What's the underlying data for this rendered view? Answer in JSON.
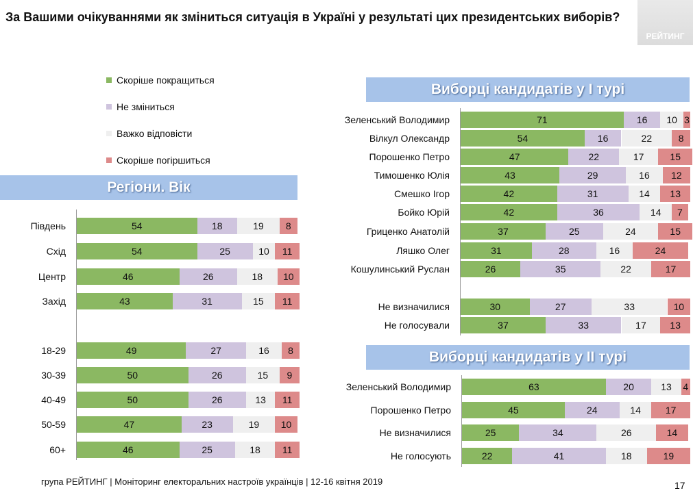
{
  "title": "За Вашими очікуваннями як зміниться ситуація в Україні у результаті цих президентських виборів?",
  "logo_text": "РЕЙТИНГ",
  "colors": {
    "better": "#8bb862",
    "same": "#cfc4de",
    "hard": "#efefef",
    "worse": "#dd8a8a",
    "header_bg": "#a7c3e9"
  },
  "legend": [
    {
      "label": "Скоріше покращиться",
      "key": "better"
    },
    {
      "label": "Не зміниться",
      "key": "same"
    },
    {
      "label": "Важко відповісти",
      "key": "hard"
    },
    {
      "label": "Скоріше погіршиться",
      "key": "worse"
    }
  ],
  "chart_data": [
    {
      "type": "bar",
      "stacked": true,
      "orientation": "horizontal",
      "title": "Регіони. Вік",
      "categories": [
        "Південь",
        "Схід",
        "Центр",
        "Захід",
        "18-29",
        "30-39",
        "40-49",
        "50-59",
        "60+"
      ],
      "series": [
        {
          "name": "Скоріше покращиться",
          "values": [
            54,
            54,
            46,
            43,
            49,
            50,
            50,
            47,
            46
          ]
        },
        {
          "name": "Не зміниться",
          "values": [
            18,
            25,
            26,
            31,
            27,
            26,
            26,
            23,
            25
          ]
        },
        {
          "name": "Важко відповісти",
          "values": [
            19,
            10,
            18,
            15,
            16,
            15,
            13,
            19,
            18
          ]
        },
        {
          "name": "Скоріше погіршиться",
          "values": [
            8,
            11,
            10,
            11,
            8,
            9,
            11,
            10,
            11
          ]
        }
      ]
    },
    {
      "type": "bar",
      "stacked": true,
      "orientation": "horizontal",
      "title": "Виборці кандидатів у І турі",
      "categories": [
        "Зеленський Володимир",
        "Вілкул Олександр",
        "Порошенко Петро",
        "Тимошенко Юлія",
        "Смешко Ігор",
        "Бойко Юрій",
        "Гриценко Анатолій",
        "Ляшко Олег",
        "Кошулинський Руслан",
        "Не визначилися",
        "Не голосували"
      ],
      "series": [
        {
          "name": "Скоріше покращиться",
          "values": [
            71,
            54,
            47,
            43,
            42,
            42,
            37,
            31,
            26,
            30,
            37
          ]
        },
        {
          "name": "Не зміниться",
          "values": [
            16,
            16,
            22,
            29,
            31,
            36,
            25,
            28,
            35,
            27,
            33
          ]
        },
        {
          "name": "Важко відповісти",
          "values": [
            10,
            22,
            17,
            16,
            14,
            14,
            24,
            16,
            22,
            33,
            17
          ]
        },
        {
          "name": "Скоріше погіршиться",
          "values": [
            3,
            8,
            15,
            12,
            13,
            7,
            15,
            24,
            17,
            10,
            13
          ]
        }
      ]
    },
    {
      "type": "bar",
      "stacked": true,
      "orientation": "horizontal",
      "title": "Виборці кандидатів у ІІ турі",
      "categories": [
        "Зеленський Володимир",
        "Порошенко Петро",
        "Не визначилися",
        "Не голосують"
      ],
      "series": [
        {
          "name": "Скоріше покращиться",
          "values": [
            63,
            45,
            25,
            22
          ]
        },
        {
          "name": "Не зміниться",
          "values": [
            20,
            24,
            34,
            41
          ]
        },
        {
          "name": "Важко відповісти",
          "values": [
            13,
            14,
            26,
            18
          ]
        },
        {
          "name": "Скоріше погіршиться",
          "values": [
            4,
            17,
            14,
            19
          ]
        }
      ]
    }
  ],
  "footer": "група РЕЙТИНГ | Моніторинг електоральних настроїв українців  |  12-16 квітня  2019",
  "page_number": "17"
}
